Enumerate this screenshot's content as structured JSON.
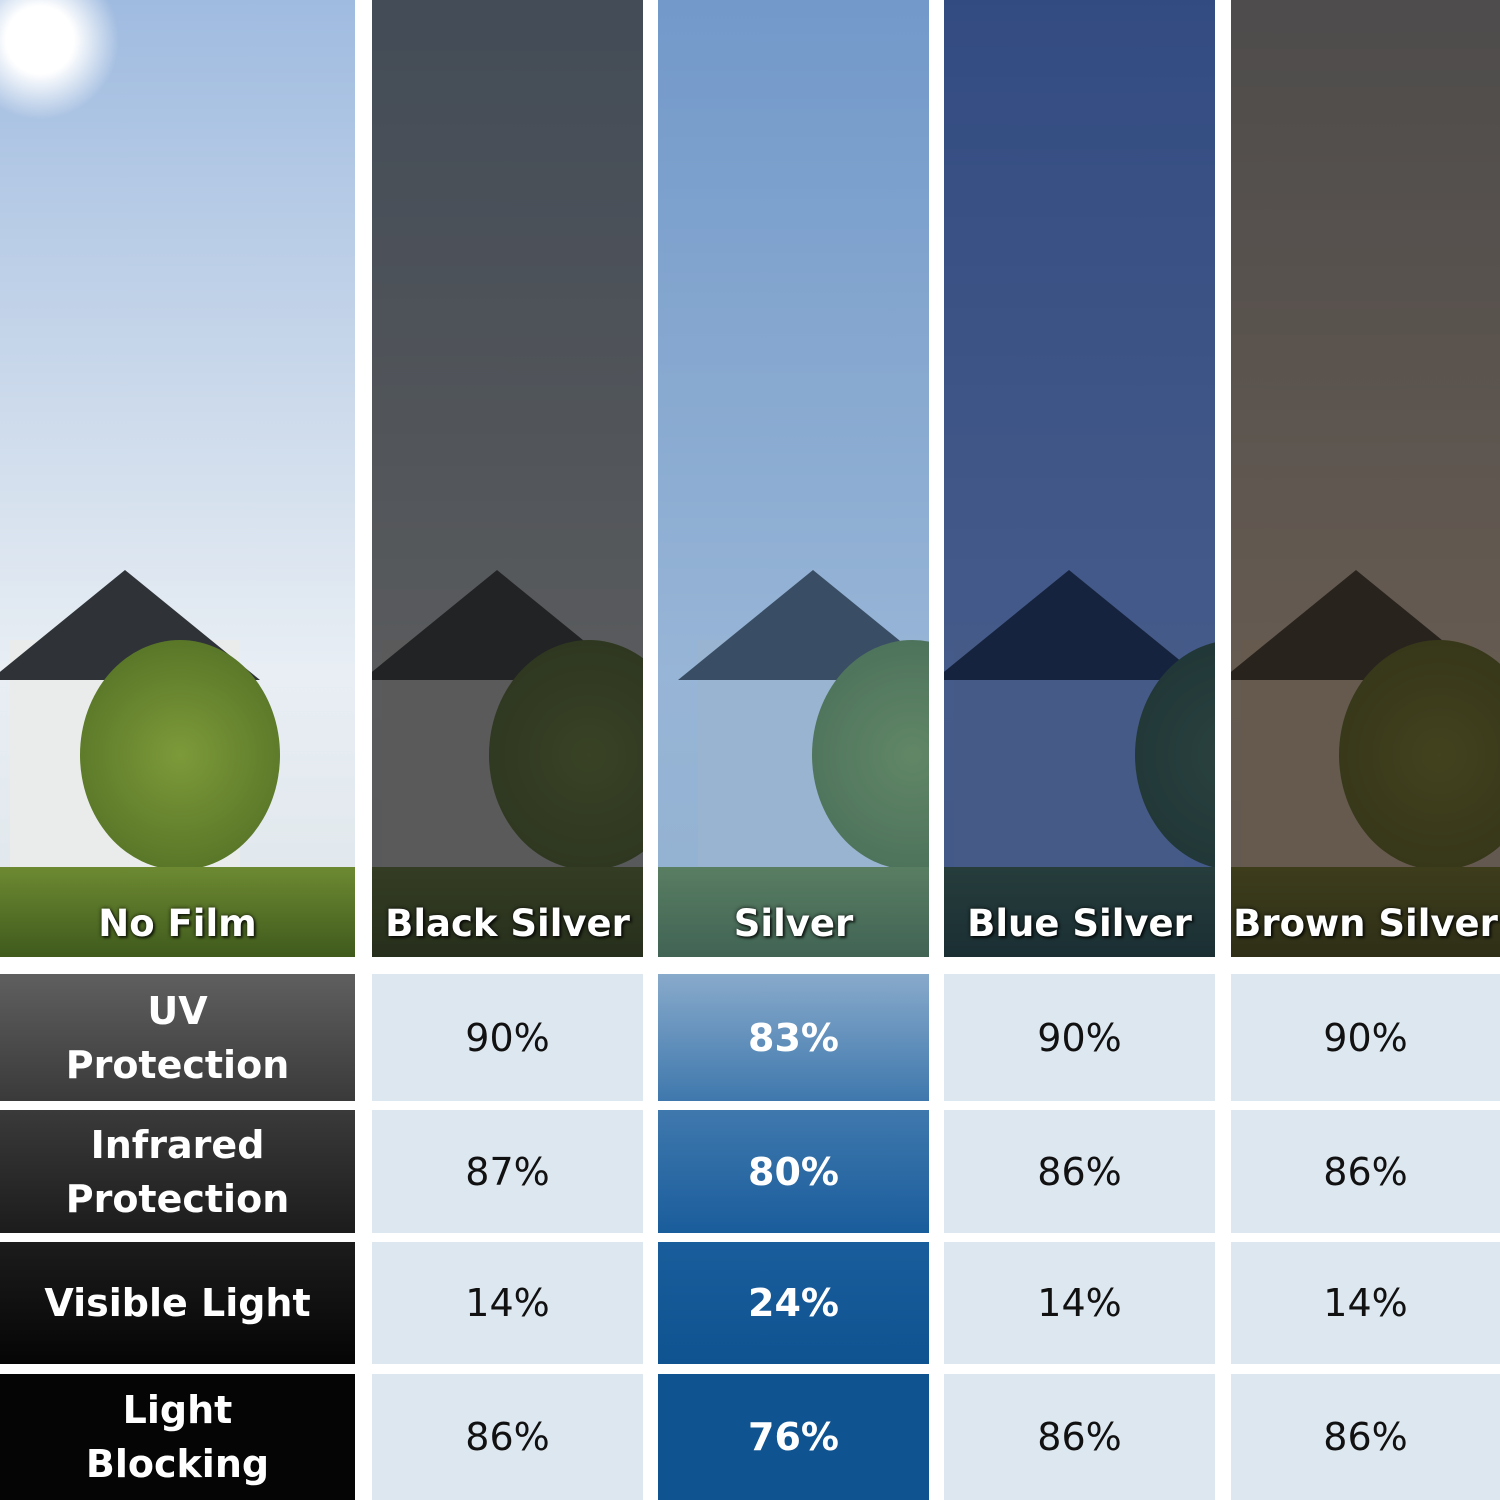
{
  "films": [
    {
      "name": "No Film",
      "tint": "none"
    },
    {
      "name": "Black Silver",
      "tint": "#3a3a3a"
    },
    {
      "name": "Silver",
      "tint": "#5f8fc4"
    },
    {
      "name": "Blue Silver",
      "tint": "#1f3a74"
    },
    {
      "name": "Brown Silver",
      "tint": "#4a3a2c"
    }
  ],
  "rows": [
    {
      "label": "UV Protection",
      "values": [
        "90%",
        "83%",
        "90%",
        "90%"
      ]
    },
    {
      "label": "Infrared Protection",
      "values": [
        "87%",
        "80%",
        "86%",
        "86%"
      ]
    },
    {
      "label": "Visible Light",
      "values": [
        "14%",
        "24%",
        "14%",
        "14%"
      ]
    },
    {
      "label": "Light Blocking",
      "values": [
        "86%",
        "76%",
        "86%",
        "86%"
      ]
    }
  ],
  "colors": {
    "value_cell_bg": "#dde7f0",
    "highlight_column": [
      "#88aacb",
      "#3f78ad",
      "#1a5d9c",
      "#0f5391"
    ],
    "row_header": [
      "#5f5f5f",
      "#3a3a3a",
      "#1c1c1c",
      "#050505"
    ]
  }
}
